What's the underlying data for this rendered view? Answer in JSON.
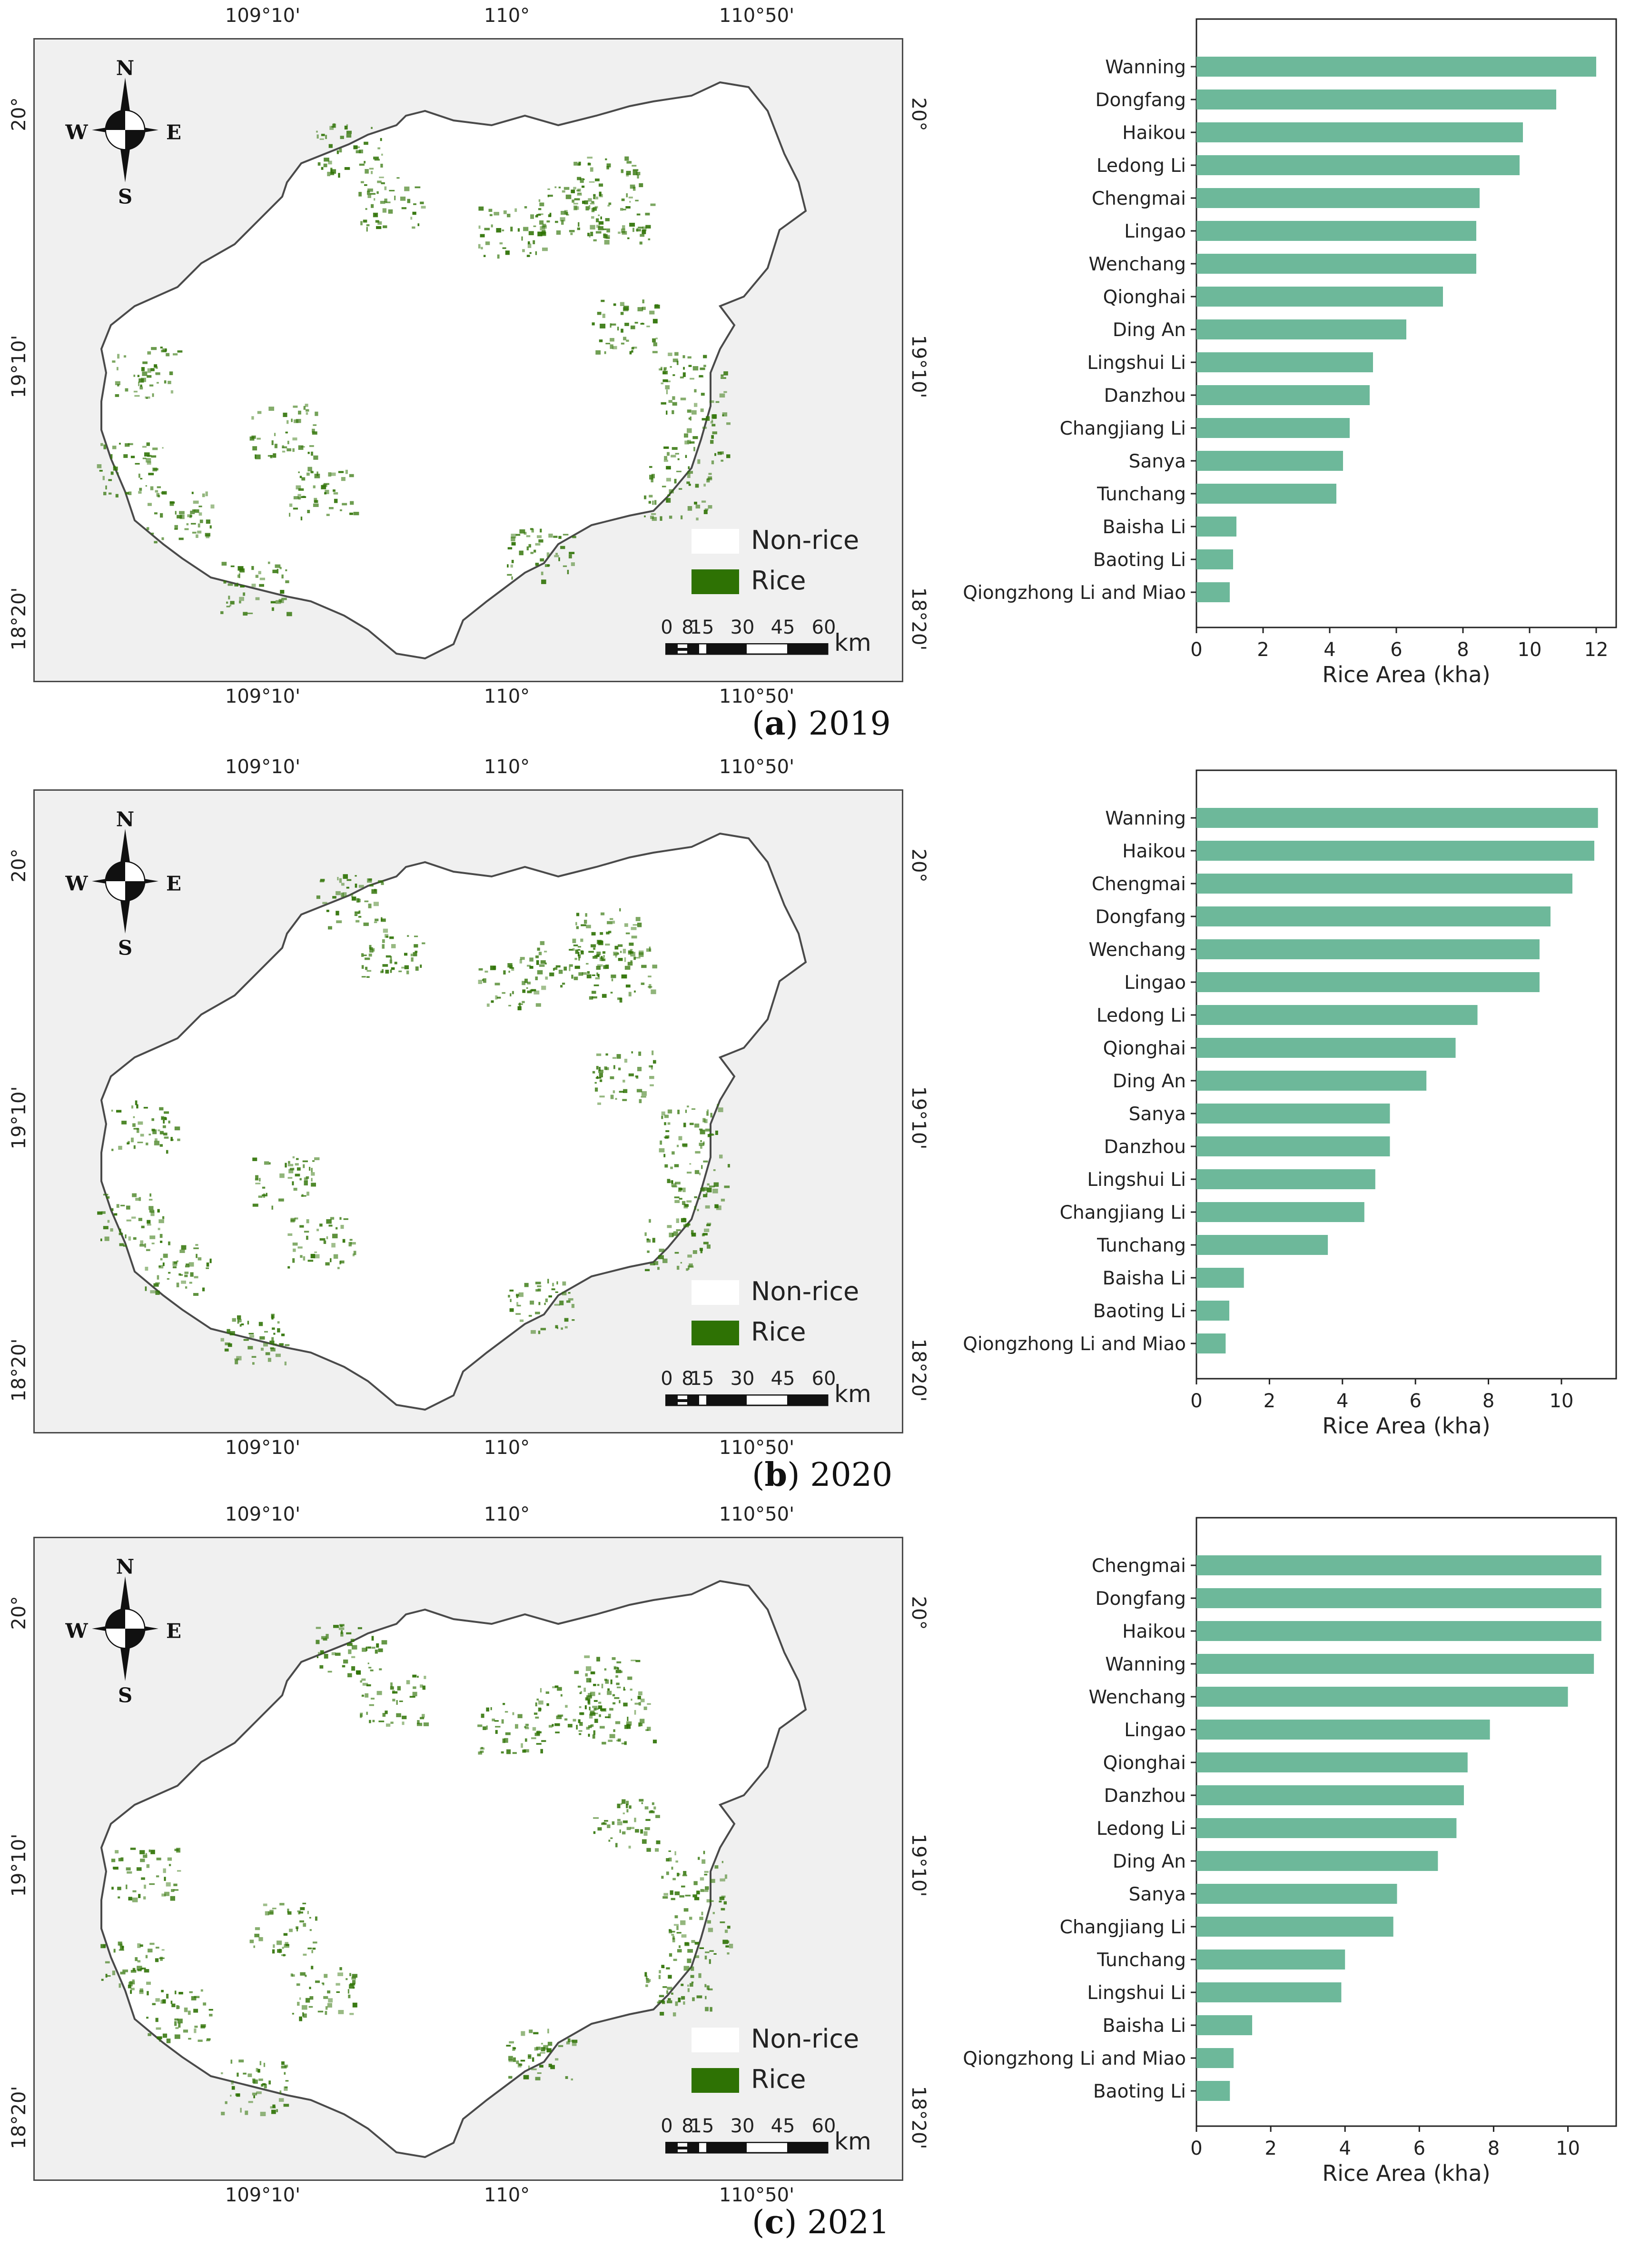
{
  "colors": {
    "bar": "#6db89a",
    "rice": "#2e7204",
    "nonrice": "#ffffff",
    "map_bg": "#f0f0f0",
    "coast": "#4a4a4a"
  },
  "map_common": {
    "lon_labels": [
      "109°10'",
      "110°",
      "110°50'"
    ],
    "lat_labels": [
      "20°",
      "19°10'",
      "18°20'"
    ],
    "compass": {
      "n": "N",
      "s": "S",
      "e": "E",
      "w": "W"
    },
    "legend": {
      "nonrice": "Non-rice",
      "rice": "Rice"
    },
    "scale": {
      "ticks": [
        "0",
        "8",
        "15",
        "30",
        "45",
        "60"
      ],
      "unit": "km"
    }
  },
  "panels": [
    {
      "label_letter": "a",
      "label_close": ") 2019",
      "label_open": "("
    },
    {
      "label_letter": "b",
      "label_close": ") 2020",
      "label_open": "("
    },
    {
      "label_letter": "c",
      "label_close": ") 2021",
      "label_open": "("
    }
  ],
  "chart_data": [
    {
      "type": "bar",
      "orientation": "horizontal",
      "xlabel": "Rice Area (kha)",
      "xlim": [
        0,
        12.6
      ],
      "xticks": [
        0,
        2,
        4,
        6,
        8,
        10,
        12
      ],
      "categories": [
        "Wanning",
        "Dongfang",
        "Haikou",
        "Ledong Li",
        "Chengmai",
        "Lingao",
        "Wenchang",
        "Qionghai",
        "Ding An",
        "Lingshui Li",
        "Danzhou",
        "Changjiang Li",
        "Sanya",
        "Tunchang",
        "Baisha Li",
        "Baoting Li",
        "Qiongzhong Li and Miao"
      ],
      "values": [
        12.0,
        10.8,
        9.8,
        9.7,
        8.5,
        8.4,
        8.4,
        7.4,
        6.3,
        5.3,
        5.2,
        4.6,
        4.4,
        4.2,
        1.2,
        1.1,
        1.0
      ]
    },
    {
      "type": "bar",
      "orientation": "horizontal",
      "xlabel": "Rice Area (kha)",
      "xlim": [
        0,
        11.5
      ],
      "xticks": [
        0,
        2,
        4,
        6,
        8,
        10
      ],
      "categories": [
        "Wanning",
        "Haikou",
        "Chengmai",
        "Dongfang",
        "Wenchang",
        "Lingao",
        "Ledong Li",
        "Qionghai",
        "Ding An",
        "Sanya",
        "Danzhou",
        "Lingshui Li",
        "Changjiang Li",
        "Tunchang",
        "Baisha Li",
        "Baoting Li",
        "Qiongzhong Li and Miao"
      ],
      "values": [
        11.0,
        10.9,
        10.3,
        9.7,
        9.4,
        9.4,
        7.7,
        7.1,
        6.3,
        5.3,
        5.3,
        4.9,
        4.6,
        3.6,
        1.3,
        0.9,
        0.8
      ]
    },
    {
      "type": "bar",
      "orientation": "horizontal",
      "xlabel": "Rice Area (kha)",
      "xlim": [
        0,
        11.3
      ],
      "xticks": [
        0,
        2,
        4,
        6,
        8,
        10
      ],
      "categories": [
        "Chengmai",
        "Dongfang",
        "Haikou",
        "Wanning",
        "Wenchang",
        "Lingao",
        "Qionghai",
        "Danzhou",
        "Ledong Li",
        "Ding An",
        "Sanya",
        "Changjiang Li",
        "Tunchang",
        "Lingshui Li",
        "Baisha Li",
        "Qiongzhong Li and Miao",
        "Baoting Li"
      ],
      "values": [
        10.9,
        10.9,
        10.9,
        10.7,
        10.0,
        7.9,
        7.3,
        7.2,
        7.0,
        6.5,
        5.4,
        5.3,
        4.0,
        3.9,
        1.5,
        1.0,
        0.9
      ]
    }
  ]
}
